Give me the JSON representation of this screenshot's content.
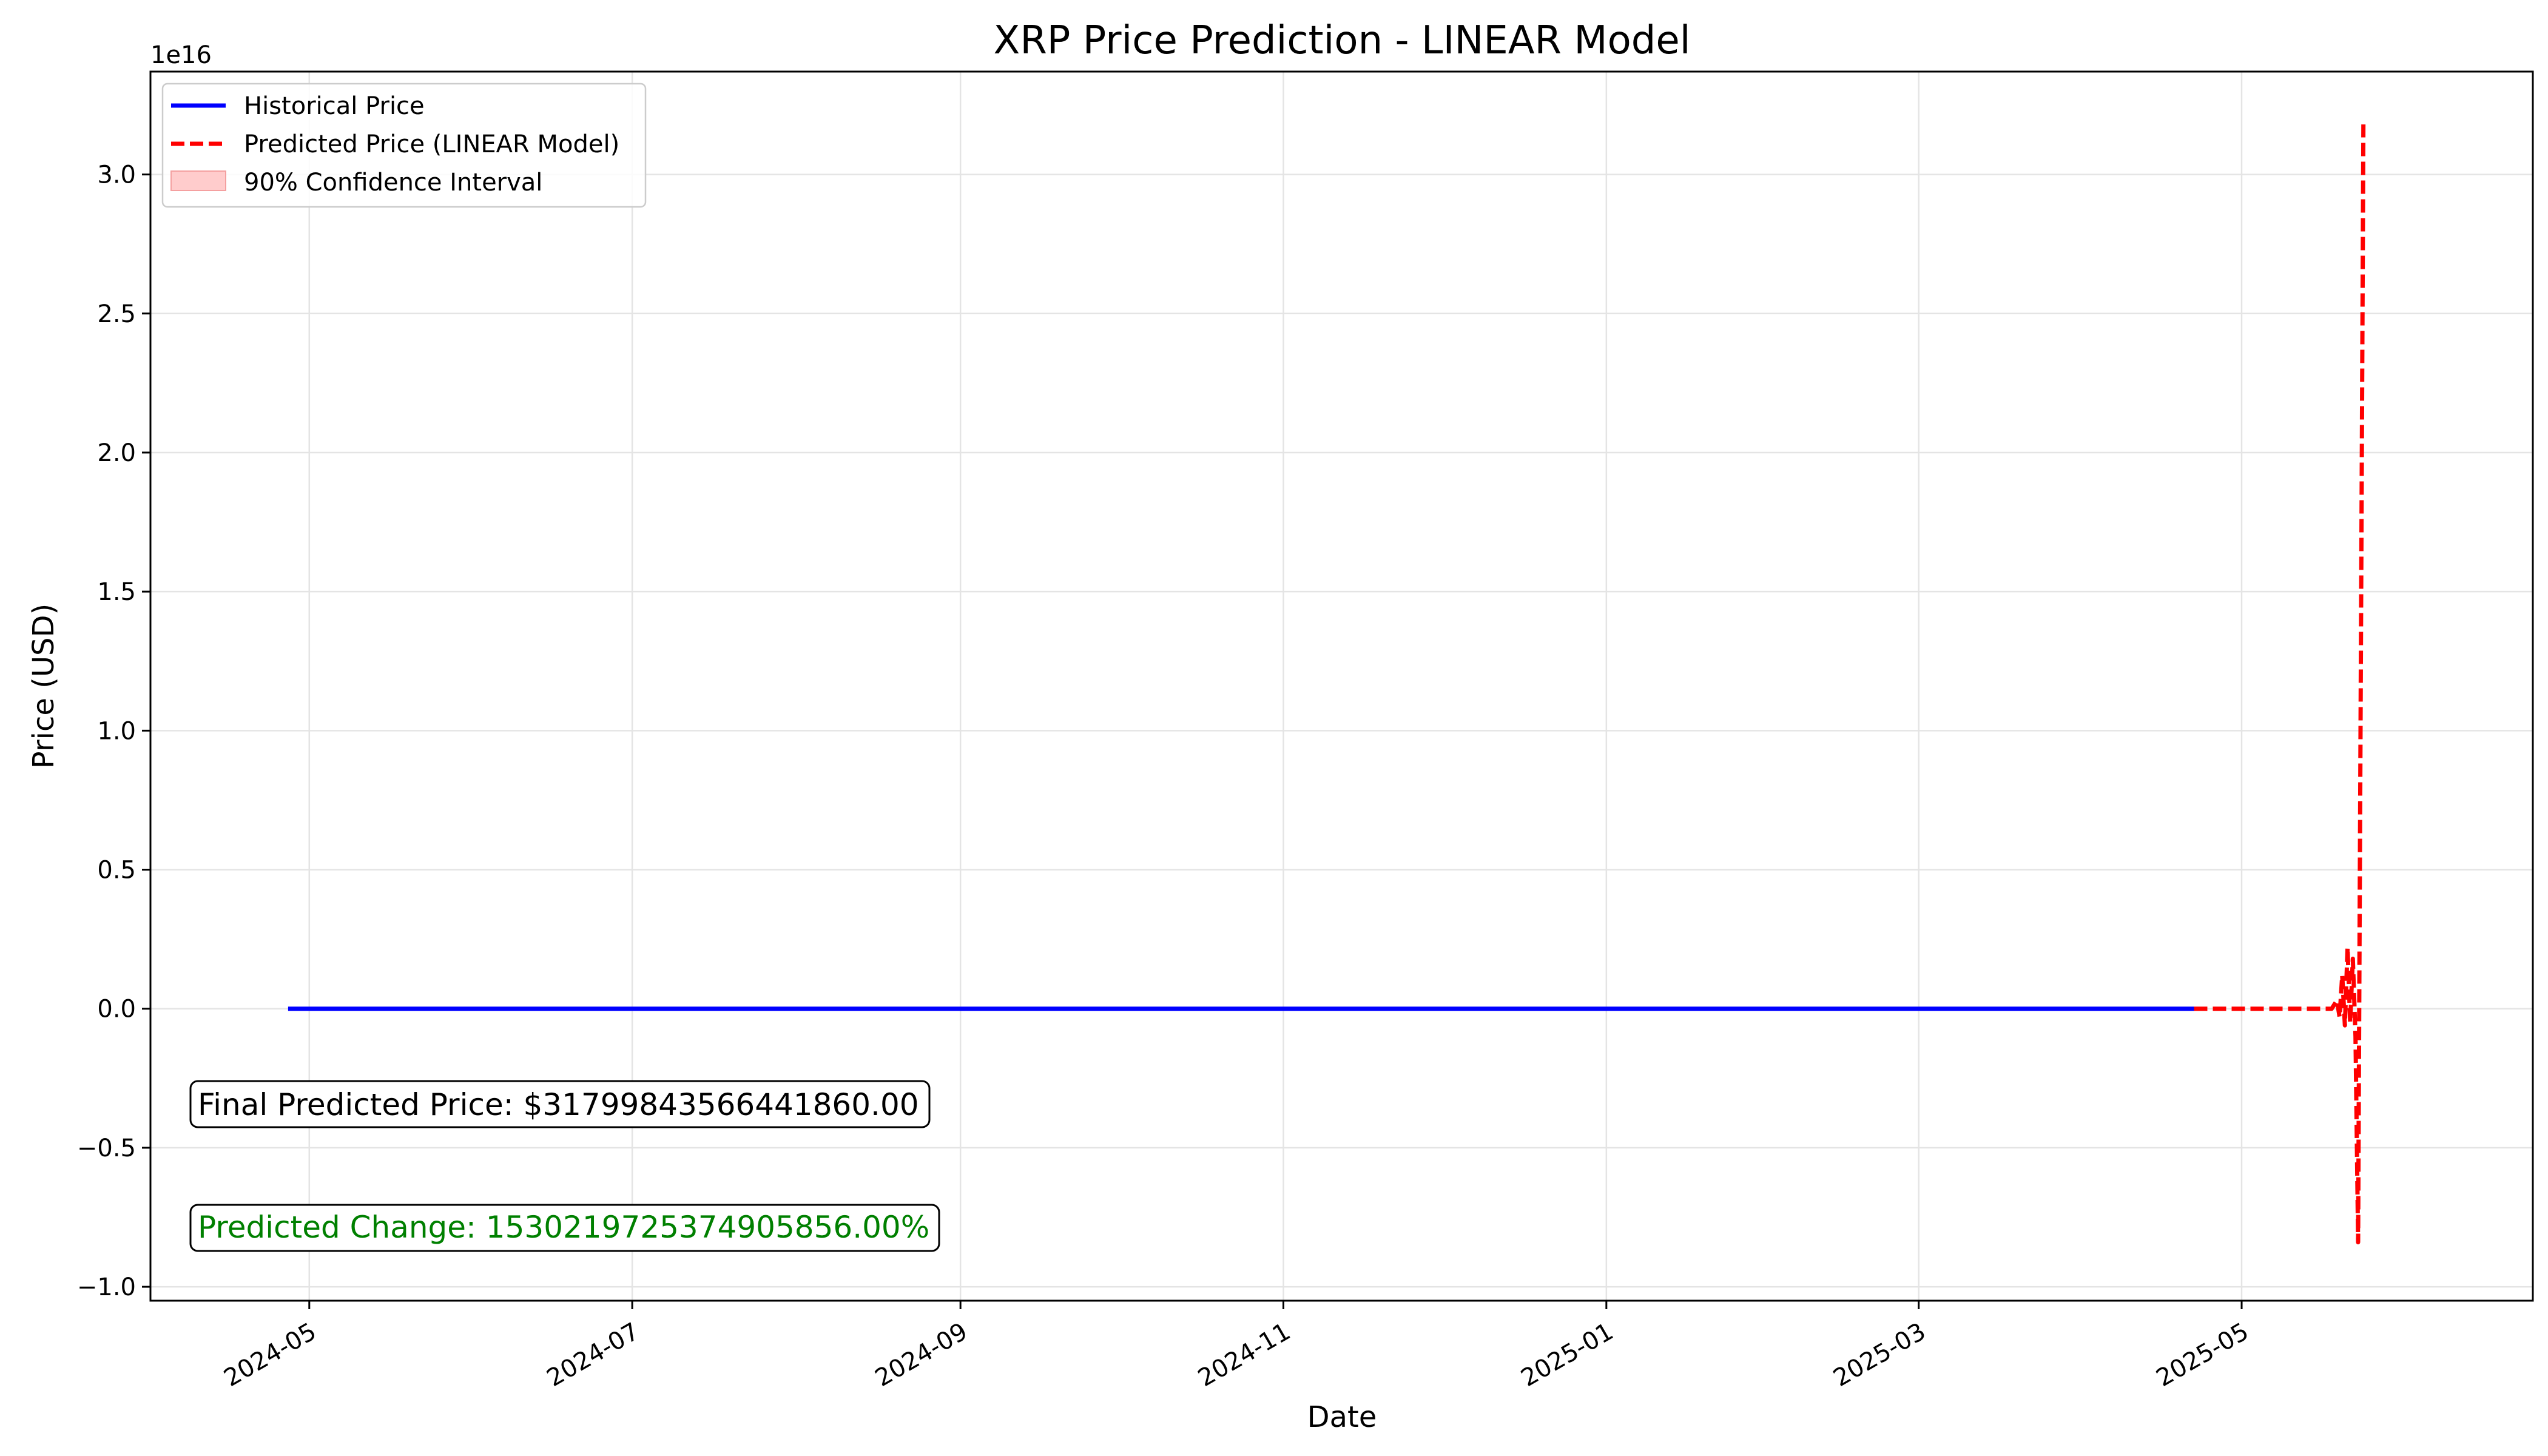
{
  "chart_data": {
    "type": "line",
    "title": "XRP Price Prediction - LINEAR Model",
    "xlabel": "Date",
    "ylabel": "Price (USD)",
    "y_offset_label": "1e16",
    "y_scale_factor": 1e+16,
    "xlim": [
      "2024-04-01",
      "2025-06-25"
    ],
    "ylim": [
      -1.05,
      3.37
    ],
    "grid": true,
    "legend_position": "top-left",
    "x_ticks": [
      "2024-05",
      "2024-07",
      "2024-09",
      "2024-11",
      "2025-01",
      "2025-03",
      "2025-05"
    ],
    "x_tick_dates": [
      "2024-05-01",
      "2024-07-01",
      "2024-09-01",
      "2024-11-01",
      "2025-01-01",
      "2025-03-01",
      "2025-05-01"
    ],
    "y_ticks": [
      -1.0,
      -0.5,
      0.0,
      0.5,
      1.0,
      1.5,
      2.0,
      2.5,
      3.0
    ],
    "y_tick_labels": [
      "−1.0",
      "−0.5",
      "0.0",
      "0.5",
      "1.0",
      "1.5",
      "2.0",
      "2.5",
      "3.0"
    ],
    "legend": [
      {
        "label": "Historical Price",
        "style": "solid",
        "color": "#0000ff"
      },
      {
        "label": "Predicted Price (LINEAR Model)",
        "style": "dashed",
        "color": "#ff0000"
      },
      {
        "label": "90% Confidence Interval",
        "style": "patch",
        "color": "#ffcccc"
      }
    ],
    "series": [
      {
        "name": "Historical Price",
        "color": "#0000ff",
        "style": "solid",
        "points": [
          [
            "2024-04-27",
            0
          ],
          [
            "2025-04-22",
            0
          ]
        ]
      },
      {
        "name": "Predicted Price (LINEAR Model)",
        "color": "#ff0000",
        "style": "dashed",
        "points": [
          [
            "2025-04-22",
            0
          ],
          [
            "2025-05-18",
            0
          ],
          [
            "2025-05-19",
            0.03
          ],
          [
            "2025-05-19",
            -0.03
          ],
          [
            "2025-05-20",
            0.12
          ],
          [
            "2025-05-20",
            -0.06
          ],
          [
            "2025-05-21",
            0.22
          ],
          [
            "2025-05-21",
            -0.05
          ],
          [
            "2025-05-22",
            0.18
          ],
          [
            "2025-05-22",
            -0.1
          ],
          [
            "2025-05-23",
            -0.84
          ],
          [
            "2025-05-24",
            3.18
          ]
        ]
      }
    ],
    "annotations": [
      {
        "text": "Final Predicted Price: $31799843566441860.00",
        "color": "#000000"
      },
      {
        "text": "Predicted Change: 1530219725374905856.00%",
        "color": "#008000"
      }
    ]
  }
}
